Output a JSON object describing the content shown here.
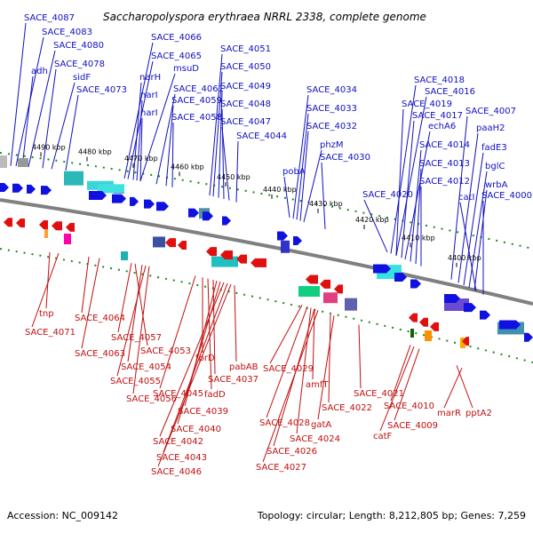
{
  "title": "Saccharopolyspora erythraea NRRL 2338, complete genome",
  "footer": {
    "accession": "Accession: NC_009142",
    "summary": "Topology: circular; Length: 8,212,805 bp; Genes: 7,259"
  },
  "colors": {
    "forward": "#1010e0",
    "reverse": "#e01010",
    "backbone": "#808080",
    "tick_dots": "#1a8a1a"
  },
  "scale_ticks": [
    "4490 kbp",
    "4480 kbp",
    "4470 kbp",
    "4460 kbp",
    "4450 kbp",
    "4440 kbp",
    "4430 kbp",
    "4420 kbp",
    "4410 kbp",
    "4400 kbp"
  ],
  "top_labels": [
    "SACE_4087",
    "SACE_4083",
    "adh",
    "SACE_4080",
    "SACE_4078",
    "sidF",
    "SACE_4073",
    "SACE_4066",
    "SACE_4065",
    "narH",
    "msuD",
    "narI",
    "SACE_4061",
    "narI",
    "SACE_4059",
    "SACE_4058",
    "SACE_4051",
    "SACE_4050",
    "SACE_4049",
    "SACE_4048",
    "SACE_4047",
    "SACE_4044",
    "SACE_4034",
    "SACE_4033",
    "SACE_4032",
    "phzM",
    "SACE_4030",
    "pobA",
    "SACE_4018",
    "SACE_4016",
    "SACE_4019",
    "SACE_4017",
    "echA6",
    "SACE_4014",
    "SACE_4013",
    "SACE_4012",
    "SACE_4020",
    "SACE_4007",
    "paaH2",
    "fadE3",
    "bglC",
    "wrbA",
    "catI",
    "SACE_4000"
  ],
  "bottom_labels": [
    "tnp",
    "SACE_4071",
    "SACE_4064",
    "SACE_4063",
    "SACE_4057",
    "SACE_4053",
    "SACE_4054",
    "SACE_4055",
    "SACE_4056",
    "SACE_4045",
    "fprD",
    "fadD",
    "SACE_4037",
    "pabAB",
    "SACE_4039",
    "SACE_4040",
    "SACE_4042",
    "SACE_4043",
    "SACE_4046",
    "SACE_4029",
    "amfT",
    "SACE_4021",
    "SACE_4022",
    "gatA",
    "SACE_4028",
    "SACE_4024",
    "SACE_4026",
    "SACE_4027",
    "SACE_4010",
    "SACE_4009",
    "catF",
    "marR",
    "pptA2"
  ]
}
